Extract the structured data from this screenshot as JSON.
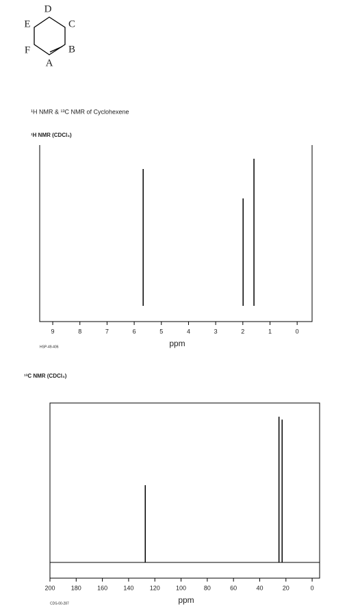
{
  "structure": {
    "labels": [
      "D",
      "E",
      "C",
      "F",
      "B",
      "A"
    ]
  },
  "heading": "¹H NMR & ¹³C NMR of Cyclohexene",
  "chart_data": [
    {
      "type": "stem",
      "title": "¹H NMR (CDCl₃)",
      "x_label": "ppm",
      "note": "HSP-49-406",
      "x": [
        5.67,
        1.99,
        1.59
      ],
      "values": [
        93,
        73,
        100
      ],
      "color": "#000000",
      "xlim": [
        9.48,
        -0.55
      ],
      "xticks": [
        9,
        8,
        7,
        6,
        5,
        4,
        3,
        2,
        1,
        0
      ]
    },
    {
      "type": "stem",
      "title": "¹³C NMR (CDCl₃)",
      "x_label": "ppm",
      "note": "CDS-00-287",
      "x": [
        127.3,
        25.3,
        22.9
      ],
      "values": [
        53,
        100,
        98
      ],
      "color": "#000000",
      "xlim": [
        200,
        -5.7
      ],
      "xticks": [
        200,
        180,
        160,
        140,
        120,
        100,
        80,
        60,
        40,
        20,
        0
      ]
    }
  ]
}
